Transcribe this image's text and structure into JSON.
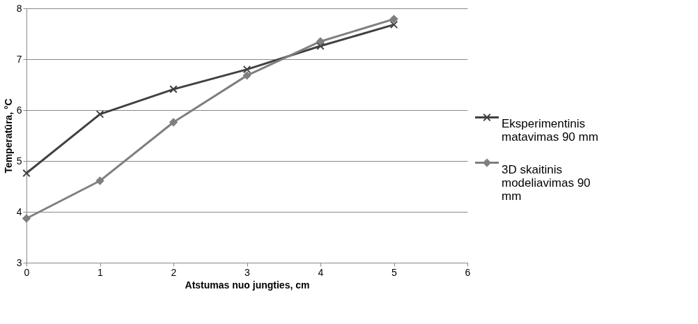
{
  "chart_data": {
    "type": "line",
    "xlabel": "Atstumas nuo jungties, cm",
    "ylabel": "Temperatūra, °C",
    "x": [
      0,
      1,
      2,
      3,
      4,
      5
    ],
    "series": [
      {
        "name": "Eksperimentinis matavimas 90 mm",
        "color": "#404040",
        "marker": "cross",
        "values": [
          4.76,
          5.92,
          6.41,
          6.8,
          7.26,
          7.68
        ]
      },
      {
        "name": "3D skaitinis modeliavimas 90 mm",
        "color": "#7f7f7f",
        "marker": "diamond",
        "values": [
          3.87,
          4.61,
          5.76,
          6.68,
          7.35,
          7.79
        ]
      }
    ],
    "xlim": [
      0,
      6
    ],
    "xticks": [
      0,
      1,
      2,
      3,
      4,
      5,
      6
    ],
    "ylim": [
      3,
      8
    ],
    "yticks": [
      3,
      4,
      5,
      6,
      7,
      8
    ],
    "grid": "y",
    "legend": "right",
    "line_style": "solid"
  }
}
